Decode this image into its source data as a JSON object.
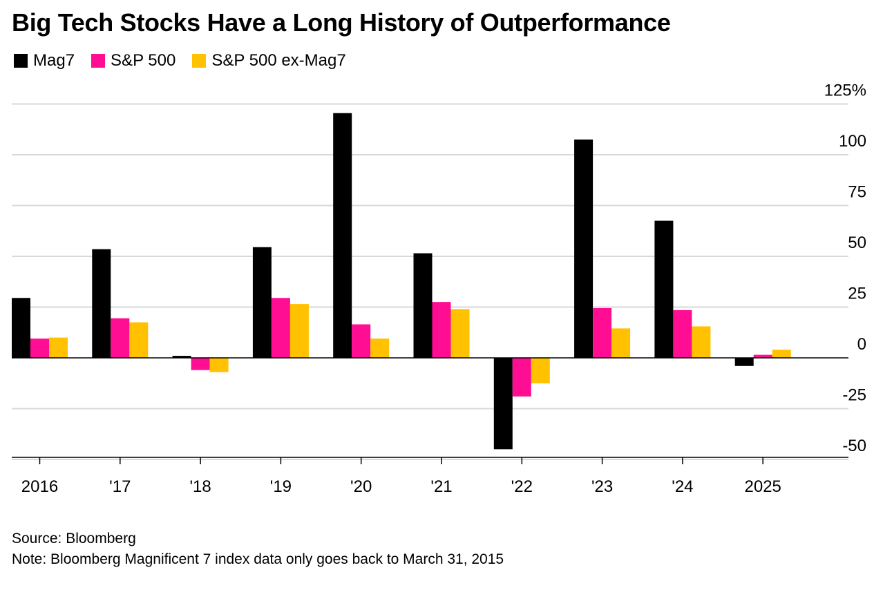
{
  "title": "Big Tech Stocks Have a Long History of Outperformance",
  "legend": [
    {
      "name": "Mag7",
      "color": "#000000"
    },
    {
      "name": "S&P 500",
      "color": "#ff0d93"
    },
    {
      "name": "S&P 500 ex-Mag7",
      "color": "#ffc100"
    }
  ],
  "footer": {
    "source": "Source: Bloomberg",
    "note": "Note: Bloomberg Magnificent 7 index data only goes back to March 31, 2015"
  },
  "chart_data": {
    "type": "bar",
    "categories": [
      "2016",
      "'17",
      "'18",
      "'19",
      "'20",
      "'21",
      "'22",
      "'23",
      "'24",
      "2025"
    ],
    "series": [
      {
        "name": "Mag7",
        "color": "#000000",
        "values": [
          29.5,
          53.5,
          1,
          54.5,
          120.5,
          51.5,
          -45,
          107.5,
          67.5,
          -4
        ]
      },
      {
        "name": "S&P 500",
        "color": "#ff0d93",
        "values": [
          9.5,
          19.5,
          -6,
          29.5,
          16.5,
          27.5,
          -19,
          24.5,
          23.5,
          1.5
        ]
      },
      {
        "name": "S&P 500 ex-Mag7",
        "color": "#ffc100",
        "values": [
          10,
          17.5,
          -7,
          26.5,
          9.5,
          24,
          -12.5,
          14.5,
          15.5,
          4
        ]
      }
    ],
    "yticks": [
      "125%",
      "100",
      "75",
      "50",
      "25",
      "0",
      "-25",
      "-50"
    ],
    "ytick_values": [
      125,
      100,
      75,
      50,
      25,
      0,
      -25,
      -50
    ],
    "ylim": [
      -50,
      125
    ],
    "y_axis_position": "right",
    "grid": true,
    "legend_position": "top-left"
  }
}
